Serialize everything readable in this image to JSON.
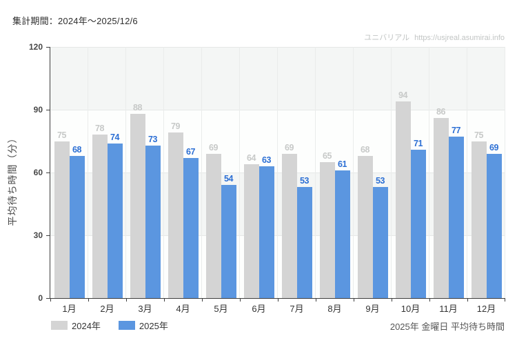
{
  "header": {
    "title": "集計期間：2024年〜2025/12/6",
    "watermark_brand": "ユニバリアル",
    "watermark_url": "https://usjreal.asumirai.info"
  },
  "chart_data": {
    "type": "bar",
    "title": "",
    "categories": [
      "1月",
      "2月",
      "3月",
      "4月",
      "5月",
      "6月",
      "7月",
      "8月",
      "9月",
      "10月",
      "11月",
      "12月"
    ],
    "series": [
      {
        "name": "2024年",
        "values": [
          75,
          78,
          88,
          79,
          69,
          64,
          69,
          65,
          68,
          94,
          86,
          75
        ],
        "color": "#d4d4d4",
        "label_color": "#c7c9c8"
      },
      {
        "name": "2025年",
        "values": [
          68,
          74,
          73,
          67,
          54,
          63,
          53,
          61,
          53,
          71,
          77,
          69
        ],
        "color": "#5b96e0",
        "label_color": "#2c6fd4"
      }
    ],
    "xlabel": "",
    "ylabel": "平均待ち時間（分）",
    "ylim": [
      0,
      120
    ],
    "yticks": [
      0,
      30,
      60,
      90,
      120
    ],
    "grid": "alternating-horizontal-bands",
    "legend_position": "bottom-left",
    "caption": "2025年 金曜日 平均待ち時間",
    "style": {
      "band_shaded": "#f4f6f5",
      "band_plain": "#fdfefd",
      "h_gridline": "#e6e8e7",
      "v_gridline": "#eaeceb",
      "axis": "#3d3d3d"
    }
  }
}
